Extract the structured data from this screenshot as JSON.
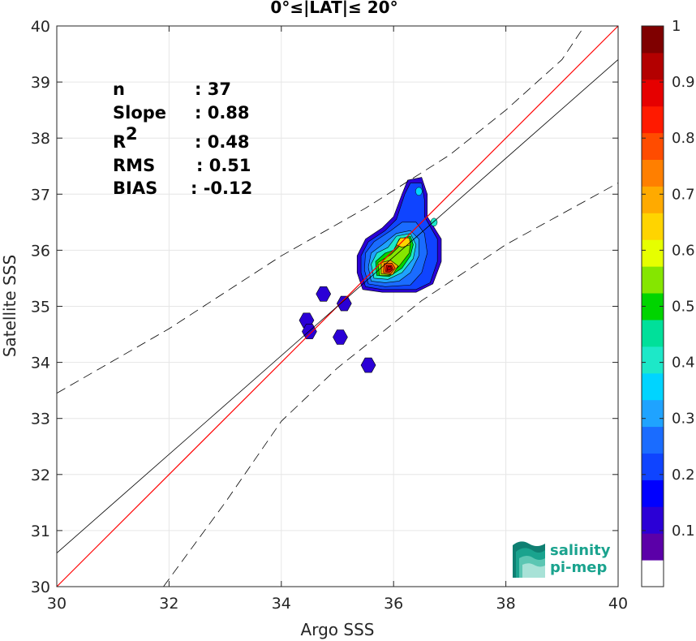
{
  "chart_data": {
    "type": "scatter",
    "title": "0°≤|LAT|≤ 20°",
    "xlabel": "Argo SSS",
    "ylabel": "Satellite SSS",
    "xlim": [
      30,
      40
    ],
    "ylim": [
      30,
      40
    ],
    "xticks": [
      "30",
      "32",
      "34",
      "36",
      "38",
      "40"
    ],
    "yticks": [
      "30",
      "31",
      "32",
      "33",
      "34",
      "35",
      "36",
      "37",
      "38",
      "39",
      "40"
    ],
    "grid": true,
    "stats": [
      {
        "label": "n",
        "value": ": 37"
      },
      {
        "label": "Slope",
        "value": ": 0.88"
      },
      {
        "label": "R",
        "sup": "2",
        "value": ": 0.48"
      },
      {
        "label": "RMS",
        "value": ": 0.51"
      },
      {
        "label": "BIAS",
        "value": ": -0.12"
      }
    ],
    "fit_line": {
      "slope": 0.88,
      "intercept_at_x30": 30.6
    },
    "identity_line": {
      "slope": 1,
      "intercept_at_x30": 30
    },
    "confidence_band": {
      "upper": [
        [
          30,
          33.45
        ],
        [
          32,
          34.6
        ],
        [
          34,
          35.9
        ],
        [
          35.5,
          36.75
        ],
        [
          37,
          37.7
        ],
        [
          38,
          38.5
        ],
        [
          39,
          39.4
        ],
        [
          39.4,
          40
        ]
      ],
      "lower": [
        [
          31.9,
          30
        ],
        [
          33,
          31.5
        ],
        [
          34,
          32.95
        ],
        [
          35,
          33.9
        ],
        [
          36.5,
          35.1
        ],
        [
          38,
          36.1
        ],
        [
          40,
          37.2
        ]
      ]
    },
    "density_isolated": [
      {
        "x": 34.45,
        "y": 34.75,
        "level": 0.1
      },
      {
        "x": 34.5,
        "y": 34.55,
        "level": 0.1
      },
      {
        "x": 34.75,
        "y": 35.22,
        "level": 0.1
      },
      {
        "x": 35.12,
        "y": 35.05,
        "level": 0.1
      },
      {
        "x": 35.05,
        "y": 34.45,
        "level": 0.1
      },
      {
        "x": 35.55,
        "y": 33.95,
        "level": 0.1
      }
    ],
    "density_cluster": [
      {
        "level": 0.1,
        "poly": [
          [
            35.45,
            35.3
          ],
          [
            35.35,
            35.6
          ],
          [
            35.35,
            35.9
          ],
          [
            35.5,
            36.2
          ],
          [
            35.8,
            36.4
          ],
          [
            36.0,
            36.6
          ],
          [
            36.15,
            37.0
          ],
          [
            36.25,
            37.25
          ],
          [
            36.5,
            37.3
          ],
          [
            36.6,
            37.0
          ],
          [
            36.6,
            36.6
          ],
          [
            36.85,
            36.2
          ],
          [
            36.85,
            35.8
          ],
          [
            36.7,
            35.4
          ],
          [
            36.4,
            35.25
          ],
          [
            35.8,
            35.25
          ]
        ]
      },
      {
        "level": 0.2,
        "poly": [
          [
            35.5,
            35.35
          ],
          [
            35.42,
            35.6
          ],
          [
            35.42,
            35.9
          ],
          [
            35.55,
            36.15
          ],
          [
            35.85,
            36.35
          ],
          [
            36.05,
            36.55
          ],
          [
            36.2,
            37.0
          ],
          [
            36.3,
            37.2
          ],
          [
            36.5,
            37.2
          ],
          [
            36.55,
            36.9
          ],
          [
            36.55,
            36.6
          ],
          [
            36.78,
            36.2
          ],
          [
            36.78,
            35.8
          ],
          [
            36.65,
            35.42
          ],
          [
            36.4,
            35.3
          ],
          [
            35.8,
            35.3
          ]
        ]
      },
      {
        "level": 0.25,
        "poly": [
          [
            35.55,
            35.4
          ],
          [
            35.48,
            35.65
          ],
          [
            35.5,
            35.95
          ],
          [
            35.65,
            36.15
          ],
          [
            35.95,
            36.35
          ],
          [
            36.15,
            36.5
          ],
          [
            36.4,
            36.5
          ],
          [
            36.55,
            36.3
          ],
          [
            36.6,
            35.95
          ],
          [
            36.5,
            35.6
          ],
          [
            36.3,
            35.38
          ],
          [
            35.85,
            35.35
          ]
        ]
      },
      {
        "level": 0.3,
        "poly": [
          [
            35.6,
            35.45
          ],
          [
            35.55,
            35.7
          ],
          [
            35.6,
            35.95
          ],
          [
            35.8,
            36.1
          ],
          [
            36.05,
            36.3
          ],
          [
            36.3,
            36.35
          ],
          [
            36.45,
            36.2
          ],
          [
            36.45,
            35.9
          ],
          [
            36.3,
            35.6
          ],
          [
            36.1,
            35.45
          ],
          [
            35.85,
            35.42
          ]
        ]
      },
      {
        "level": 0.4,
        "poly": [
          [
            35.65,
            35.5
          ],
          [
            35.6,
            35.75
          ],
          [
            35.7,
            35.95
          ],
          [
            35.9,
            36.05
          ],
          [
            36.05,
            36.25
          ],
          [
            36.3,
            36.3
          ],
          [
            36.4,
            36.1
          ],
          [
            36.35,
            35.85
          ],
          [
            36.15,
            35.6
          ],
          [
            35.9,
            35.48
          ]
        ]
      },
      {
        "level": 0.5,
        "poly": [
          [
            35.7,
            35.55
          ],
          [
            35.68,
            35.8
          ],
          [
            35.85,
            35.95
          ],
          [
            36.0,
            36.0
          ],
          [
            36.1,
            36.2
          ],
          [
            36.3,
            36.25
          ],
          [
            36.35,
            36.1
          ],
          [
            36.3,
            35.9
          ],
          [
            36.15,
            35.68
          ],
          [
            35.92,
            35.53
          ]
        ]
      },
      {
        "level": 0.55,
        "poly": [
          [
            35.75,
            35.55
          ],
          [
            35.72,
            35.78
          ],
          [
            35.95,
            35.92
          ],
          [
            36.15,
            36.12
          ],
          [
            36.3,
            36.15
          ],
          [
            36.28,
            35.95
          ],
          [
            36.1,
            35.72
          ],
          [
            35.92,
            35.55
          ]
        ]
      },
      {
        "level": 0.65,
        "poly": [
          [
            36.05,
            36.1
          ],
          [
            36.12,
            36.22
          ],
          [
            36.28,
            36.22
          ],
          [
            36.3,
            36.1
          ],
          [
            36.15,
            36.05
          ]
        ]
      },
      {
        "level": 0.7,
        "poly": [
          [
            35.78,
            35.58
          ],
          [
            35.78,
            35.78
          ],
          [
            35.95,
            35.82
          ],
          [
            36.08,
            35.72
          ],
          [
            35.98,
            35.56
          ]
        ]
      },
      {
        "level": 0.8,
        "poly": [
          [
            35.82,
            35.6
          ],
          [
            35.83,
            35.76
          ],
          [
            35.97,
            35.77
          ],
          [
            36.03,
            35.68
          ],
          [
            35.95,
            35.58
          ]
        ]
      },
      {
        "level": 0.9,
        "poly": [
          [
            35.86,
            35.62
          ],
          [
            35.87,
            35.73
          ],
          [
            35.96,
            35.73
          ],
          [
            35.99,
            35.66
          ],
          [
            35.93,
            35.61
          ]
        ]
      },
      {
        "level": 0.95,
        "poly": [
          [
            35.88,
            35.64
          ],
          [
            35.9,
            35.71
          ],
          [
            35.95,
            35.71
          ],
          [
            35.96,
            35.66
          ]
        ]
      }
    ],
    "density_spots": [
      {
        "x": 36.45,
        "y": 37.05,
        "level": 0.35
      },
      {
        "x": 36.72,
        "y": 36.5,
        "level": 0.4
      }
    ],
    "colorbar": {
      "ticks": [
        "0.1",
        "0.2",
        "0.3",
        "0.4",
        "0.5",
        "0.6",
        "0.7",
        "0.8",
        "0.9",
        "1"
      ],
      "colors": [
        "#ffffff",
        "#5b00a8",
        "#2b00d6",
        "#0000ff",
        "#0f44ff",
        "#1a6cff",
        "#1fa3ff",
        "#00d4ff",
        "#1de8c8",
        "#00e09a",
        "#00d400",
        "#85e600",
        "#e6ff00",
        "#ffd400",
        "#ffaa00",
        "#ff7f00",
        "#ff4c00",
        "#ff1a00",
        "#e60000",
        "#b30000",
        "#7f0000"
      ]
    }
  },
  "logo": {
    "line1": "salinity",
    "line2": "pi-mep"
  }
}
